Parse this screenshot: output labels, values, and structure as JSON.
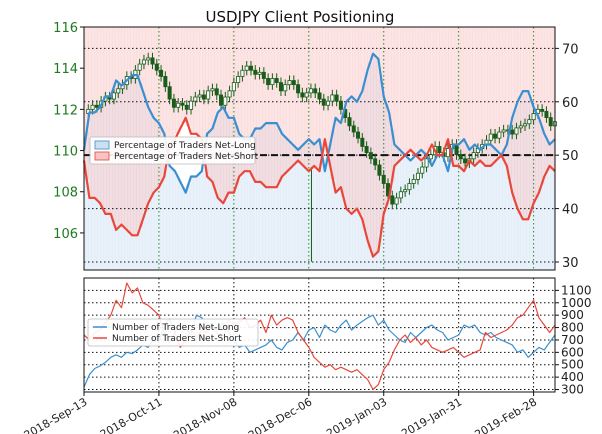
{
  "chart_data": [
    {
      "type": "line",
      "title": "USDJPY Client Positioning",
      "x_dates": [
        "2018-Sep-13",
        "2018-Oct-11",
        "2018-Nov-08",
        "2018-Dec-06",
        "2019-Jan-03",
        "2019-Jan-31",
        "2019-Feb-28"
      ],
      "left_axis": {
        "label": "",
        "ylim": [
          104.2,
          116
        ],
        "ticks": [
          "116",
          "114",
          "112",
          "110",
          "108",
          "106"
        ],
        "tick_values": [
          116,
          114,
          112,
          110,
          108,
          106
        ]
      },
      "right_axis": {
        "label": "",
        "ylim": [
          28.5,
          74
        ],
        "ticks": [
          "70",
          "60",
          "50",
          "40",
          "30"
        ],
        "tick_values": [
          70,
          60,
          50,
          40,
          30
        ]
      },
      "grid": true,
      "legend": {
        "placement": "center-left",
        "entries": [
          "Percentage of Traders Net-Long",
          "Percentage of Traders Net-Short"
        ]
      },
      "colors": {
        "net_long": "#3b8fd0",
        "net_short": "#e8473a",
        "candles": "#1a5c1a",
        "long_fill": "#cce0f2",
        "short_fill": "#f7c3c3",
        "reference_line": "#111111"
      },
      "reference_line_value": 50,
      "price_x": [
        0,
        1.6,
        3.2,
        4.8,
        6.4,
        8,
        9.6,
        11.2,
        12.8,
        14.4,
        16,
        17.6,
        19.2,
        20.8,
        22.4,
        24,
        25.6,
        27.2,
        28.8,
        30.4,
        32,
        33.6,
        35.2,
        36.8,
        38.4,
        40,
        41.6,
        43.2,
        44.8,
        46.4,
        48,
        49.6,
        51.2,
        52.8,
        54.4,
        56,
        57.6,
        59.2,
        60.8,
        62.4,
        64,
        65.6,
        67.2,
        68.8,
        70.4,
        72,
        73.6,
        75.2,
        76.8,
        78.4,
        80,
        81.6,
        83.2,
        84.8,
        86.4,
        88,
        89.6,
        91.2,
        92.8,
        94.4,
        96,
        97.6,
        99.2,
        100.8,
        102.4,
        104,
        105.6,
        107.2,
        108.8,
        110.4,
        112,
        113.6,
        115.2,
        116.8,
        118.4,
        120,
        121.6,
        123.2,
        124.8,
        126.4,
        128,
        129.6,
        131.2,
        132.8,
        134.4,
        136,
        137.6,
        139.2,
        140.8,
        142.4,
        144,
        145.6,
        147.2,
        148.8,
        150.4,
        152,
        153.6,
        155.2,
        156.8,
        158.4,
        160,
        161.6,
        163.2,
        164.8,
        166.4,
        168,
        169.6,
        171.2,
        172.8,
        174.4,
        176
      ],
      "price_values": [
        111.8,
        112,
        112.2,
        112.1,
        112.4,
        112.6,
        112.5,
        112.8,
        113,
        113.2,
        113.6,
        113.5,
        113.9,
        114.2,
        114.4,
        114.5,
        114.2,
        113.9,
        113.6,
        113.1,
        112.5,
        112.1,
        112.3,
        112.2,
        112,
        112.4,
        112.6,
        112.7,
        112.5,
        112.9,
        113,
        112.7,
        112.2,
        112.6,
        112.9,
        113.3,
        113.6,
        113.9,
        114.1,
        113.9,
        113.7,
        113.8,
        113.5,
        113.2,
        113.5,
        113.3,
        112.9,
        113.2,
        113.4,
        113.2,
        112.8,
        112.6,
        112.8,
        113,
        112.8,
        112.5,
        112.2,
        112.4,
        112.7,
        112.4,
        112,
        111.6,
        111.2,
        110.9,
        110.6,
        110.2,
        109.9,
        109.6,
        109.3,
        108.8,
        108.4,
        107.8,
        107.4,
        107.7,
        108,
        108.1,
        108.4,
        108.6,
        108.9,
        109.2,
        109.6,
        109.8,
        110.2,
        109.9,
        109.7,
        110.1,
        110.3,
        109.8,
        109.6,
        109.4,
        109.6,
        109.9,
        110.1,
        110.3,
        110.5,
        110.8,
        110.6,
        110.9,
        111,
        111,
        110.8,
        111.1,
        111.2,
        111.3,
        111.5,
        111.8,
        112,
        111.9,
        111.6,
        111.2,
        111.4
      ],
      "net_long_x": [
        0,
        2,
        4,
        6,
        8,
        10,
        12,
        14,
        16,
        18,
        20,
        22,
        24,
        26,
        28,
        30,
        32,
        34,
        36,
        38,
        40,
        42,
        44,
        46,
        48,
        50,
        52,
        54,
        56,
        58,
        60,
        62,
        64,
        66,
        68,
        70,
        72,
        74,
        76,
        78,
        80,
        82,
        84,
        86,
        88,
        90,
        92,
        94,
        96,
        98,
        100,
        102,
        104,
        106,
        108,
        110,
        112,
        114,
        116,
        118,
        120,
        122,
        124,
        126,
        128,
        130,
        132,
        134,
        136,
        138,
        140,
        142,
        144,
        146,
        148,
        150,
        152,
        154,
        156,
        158,
        160,
        162,
        164,
        166,
        168,
        170,
        172,
        174,
        176
      ],
      "net_long_values": [
        51,
        58,
        58,
        59,
        61,
        61,
        64,
        63,
        64,
        65,
        65,
        62,
        59,
        57,
        56,
        54,
        48,
        47,
        45,
        43,
        46,
        46,
        47,
        54,
        55,
        58,
        59,
        57,
        57,
        54,
        53,
        53,
        55,
        55,
        56,
        56,
        56,
        54,
        53,
        52,
        51,
        52,
        53,
        52,
        53,
        47,
        52,
        57,
        56,
        60,
        61,
        60,
        62,
        66,
        69,
        68,
        61,
        58,
        52,
        51,
        50,
        49,
        50,
        51,
        50,
        48,
        50,
        50,
        47,
        52,
        52,
        53,
        51,
        52,
        51,
        52,
        52,
        51,
        50,
        52,
        57,
        60,
        62,
        62,
        59,
        57,
        54,
        52,
        53
      ],
      "net_short_x": [
        0,
        2,
        4,
        6,
        8,
        10,
        12,
        14,
        16,
        18,
        20,
        22,
        24,
        26,
        28,
        30,
        32,
        34,
        36,
        38,
        40,
        42,
        44,
        46,
        48,
        50,
        52,
        54,
        56,
        58,
        60,
        62,
        64,
        66,
        68,
        70,
        72,
        74,
        76,
        78,
        80,
        82,
        84,
        86,
        88,
        90,
        92,
        94,
        96,
        98,
        100,
        102,
        104,
        106,
        108,
        110,
        112,
        114,
        116,
        118,
        120,
        122,
        124,
        126,
        128,
        130,
        132,
        134,
        136,
        138,
        140,
        142,
        144,
        146,
        148,
        150,
        152,
        154,
        156,
        158,
        160,
        162,
        164,
        166,
        168,
        170,
        172,
        174,
        176
      ],
      "net_short_values": [
        49,
        42,
        42,
        41,
        39,
        39,
        36,
        37,
        36,
        35,
        35,
        38,
        41,
        43,
        44,
        46,
        52,
        53,
        55,
        57,
        54,
        54,
        53,
        46,
        45,
        42,
        41,
        43,
        43,
        46,
        47,
        47,
        45,
        45,
        44,
        44,
        44,
        46,
        47,
        48,
        49,
        48,
        47,
        48,
        47,
        53,
        48,
        43,
        44,
        40,
        39,
        40,
        38,
        34,
        31,
        32,
        39,
        42,
        48,
        49,
        50,
        51,
        50,
        49,
        50,
        52,
        50,
        50,
        53,
        48,
        48,
        47,
        49,
        48,
        49,
        48,
        48,
        49,
        50,
        48,
        43,
        40,
        38,
        38,
        41,
        43,
        46,
        48,
        47
      ]
    },
    {
      "type": "line",
      "title": "",
      "right_axis": {
        "label": "",
        "ylim": [
          280,
          1200
        ],
        "ticks": [
          "1100",
          "1000",
          "900",
          "800",
          "700",
          "600",
          "500",
          "400",
          "300"
        ],
        "tick_values": [
          1100,
          1000,
          900,
          800,
          700,
          600,
          500,
          400,
          300
        ]
      },
      "grid": true,
      "legend": {
        "placement": "center-left",
        "entries": [
          "Number of Traders Net-Long",
          "Number of Traders Net-Short"
        ]
      },
      "colors": {
        "net_long": "#3b8fd0",
        "net_short": "#e8473a"
      },
      "series": [
        {
          "name": "Number of Traders Net-Long",
          "x": [
            0,
            2,
            4,
            6,
            8,
            10,
            12,
            14,
            16,
            18,
            20,
            22,
            24,
            26,
            28,
            30,
            32,
            34,
            36,
            38,
            40,
            42,
            44,
            46,
            48,
            50,
            52,
            54,
            56,
            58,
            60,
            62,
            64,
            66,
            68,
            70,
            72,
            74,
            76,
            78,
            80,
            82,
            84,
            86,
            88,
            90,
            92,
            94,
            96,
            98,
            100,
            102,
            104,
            106,
            108,
            110,
            112,
            114,
            116,
            118,
            120,
            122,
            124,
            126,
            128,
            130,
            132,
            134,
            136,
            138,
            140,
            142,
            144,
            146,
            148,
            150,
            152,
            154,
            156,
            158,
            160,
            162,
            164,
            166,
            168,
            170,
            172,
            174,
            176
          ],
          "values": [
            320,
            420,
            470,
            490,
            520,
            560,
            580,
            560,
            600,
            590,
            620,
            660,
            640,
            720,
            680,
            820,
            870,
            760,
            840,
            790,
            750,
            900,
            880,
            820,
            800,
            780,
            840,
            760,
            700,
            640,
            660,
            600,
            620,
            640,
            660,
            700,
            640,
            620,
            680,
            700,
            760,
            700,
            780,
            800,
            720,
            820,
            780,
            760,
            820,
            860,
            780,
            820,
            850,
            880,
            900,
            820,
            860,
            780,
            740,
            700,
            680,
            760,
            720,
            760,
            800,
            820,
            780,
            760,
            700,
            720,
            740,
            820,
            800,
            820,
            760,
            740,
            760,
            720,
            700,
            680,
            660,
            600,
            620,
            560,
            600,
            640,
            620,
            680,
            740
          ]
        },
        {
          "name": "Number of Traders Net-Short",
          "x": [
            0,
            2,
            4,
            6,
            8,
            10,
            12,
            14,
            16,
            18,
            20,
            22,
            24,
            26,
            28,
            30,
            32,
            34,
            36,
            38,
            40,
            42,
            44,
            46,
            48,
            50,
            52,
            54,
            56,
            58,
            60,
            62,
            64,
            66,
            68,
            70,
            72,
            74,
            76,
            78,
            80,
            82,
            84,
            86,
            88,
            90,
            92,
            94,
            96,
            98,
            100,
            102,
            104,
            106,
            108,
            110,
            112,
            114,
            116,
            118,
            120,
            122,
            124,
            126,
            128,
            130,
            132,
            134,
            136,
            138,
            140,
            142,
            144,
            146,
            148,
            150,
            152,
            154,
            156,
            158,
            160,
            162,
            164,
            166,
            168,
            170,
            172,
            174,
            176
          ],
          "values": [
            740,
            700,
            760,
            780,
            840,
            900,
            1020,
            960,
            1160,
            1080,
            1120,
            1000,
            980,
            940,
            900,
            760,
            680,
            760,
            640,
            700,
            780,
            720,
            780,
            760,
            820,
            740,
            720,
            860,
            820,
            840,
            880,
            800,
            820,
            860,
            760,
            900,
            820,
            860,
            880,
            860,
            760,
            700,
            640,
            560,
            520,
            480,
            500,
            460,
            480,
            460,
            440,
            460,
            420,
            380,
            300,
            340,
            460,
            520,
            620,
            700,
            740,
            680,
            720,
            660,
            700,
            640,
            620,
            600,
            620,
            640,
            600,
            560,
            580,
            600,
            620,
            760,
            720,
            740,
            760,
            780,
            820,
            880,
            900,
            960,
            1020,
            880,
            820,
            760,
            820
          ]
        }
      ]
    }
  ]
}
